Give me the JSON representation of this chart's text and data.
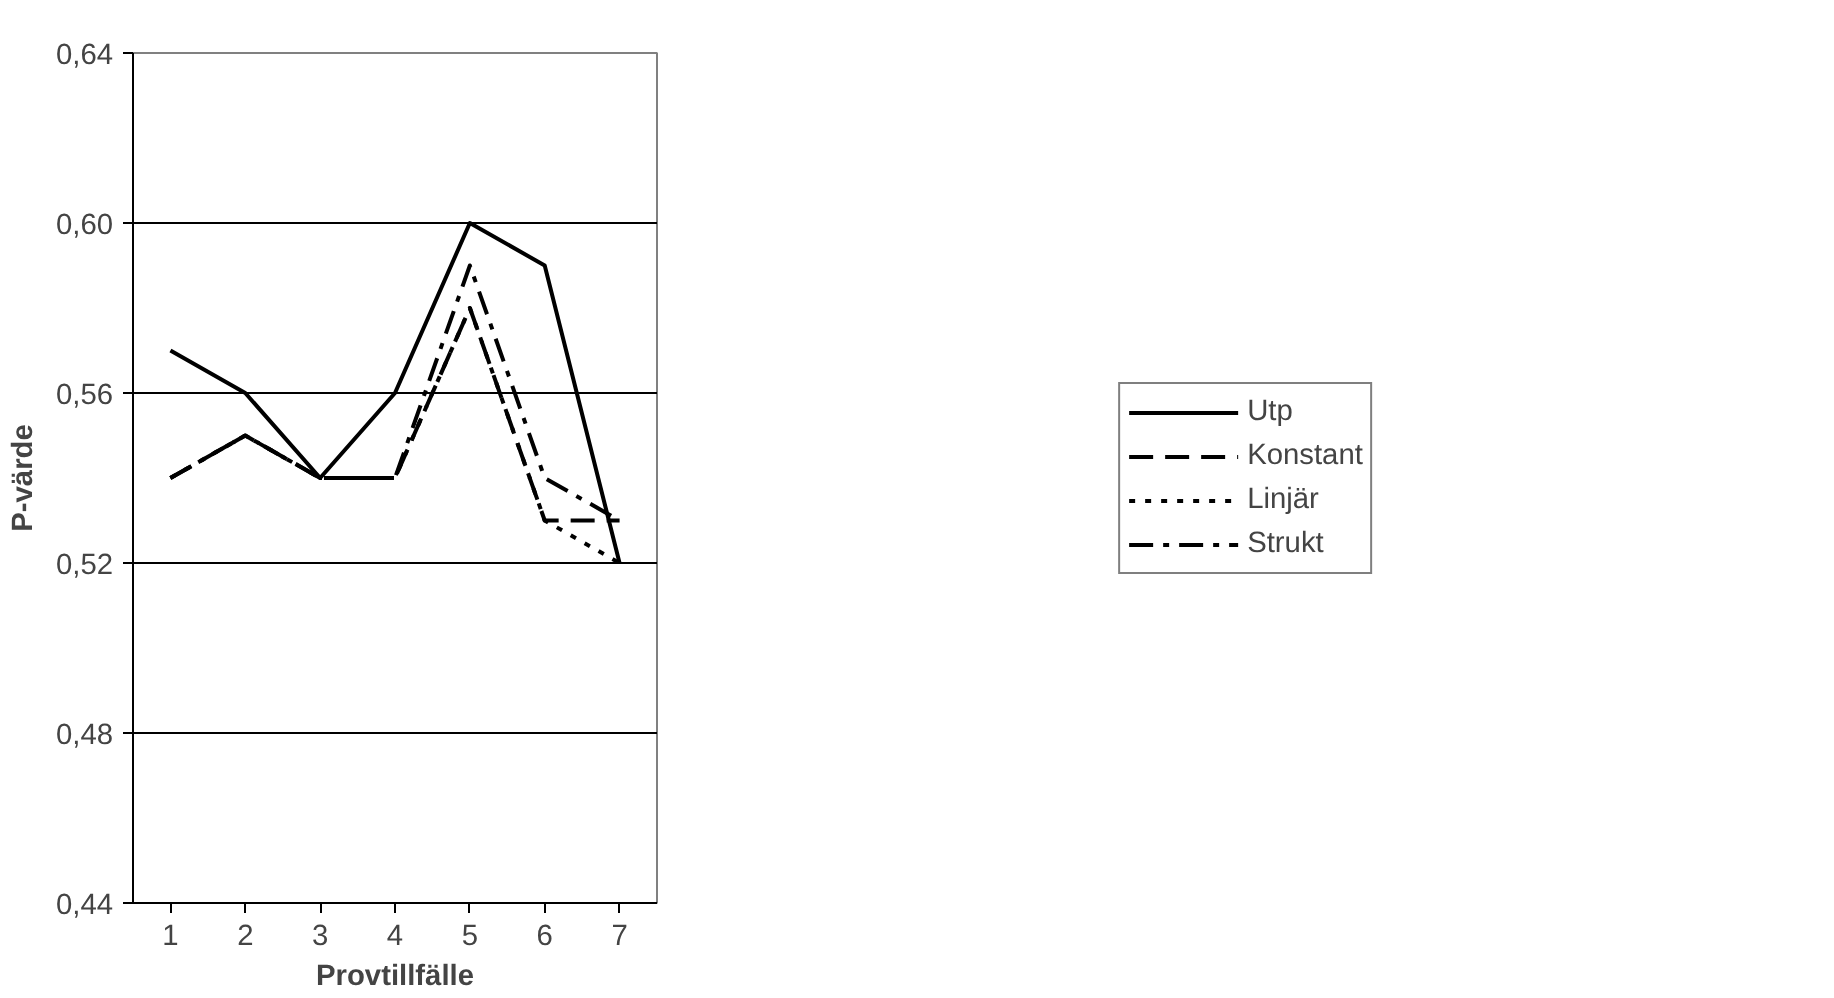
{
  "chart_data": {
    "type": "line",
    "xlabel": "Provtillfälle",
    "ylabel": "P-värde",
    "categories": [
      "1",
      "2",
      "3",
      "4",
      "5",
      "6",
      "7"
    ],
    "series": [
      {
        "name": "Utp",
        "color": "#000000",
        "line_style": "solid",
        "values": [
          0.57,
          0.56,
          0.54,
          0.56,
          0.6,
          0.59,
          0.52
        ]
      },
      {
        "name": "Konstant",
        "color": "#000000",
        "line_style": "dashed",
        "values": [
          0.54,
          0.55,
          0.54,
          0.54,
          0.58,
          0.53,
          0.53
        ]
      },
      {
        "name": "Linjär",
        "color": "#000000",
        "line_style": "dotted",
        "values": [
          0.54,
          0.55,
          0.54,
          0.54,
          0.58,
          0.53,
          0.52
        ]
      },
      {
        "name": "Strukt",
        "color": "#000000",
        "line_style": "dashdot",
        "values": [
          0.54,
          0.55,
          0.54,
          0.54,
          0.59,
          0.54,
          0.53
        ]
      }
    ],
    "ylim": [
      0.44,
      0.64
    ],
    "yticks": [
      {
        "value": 0.44,
        "label": "0,44"
      },
      {
        "value": 0.48,
        "label": "0,48"
      },
      {
        "value": 0.52,
        "label": "0,52"
      },
      {
        "value": 0.56,
        "label": "0,56"
      },
      {
        "value": 0.6,
        "label": "0,60"
      },
      {
        "value": 0.64,
        "label": "0,64"
      }
    ],
    "grid": "y",
    "legend": "right",
    "marker": "none"
  }
}
